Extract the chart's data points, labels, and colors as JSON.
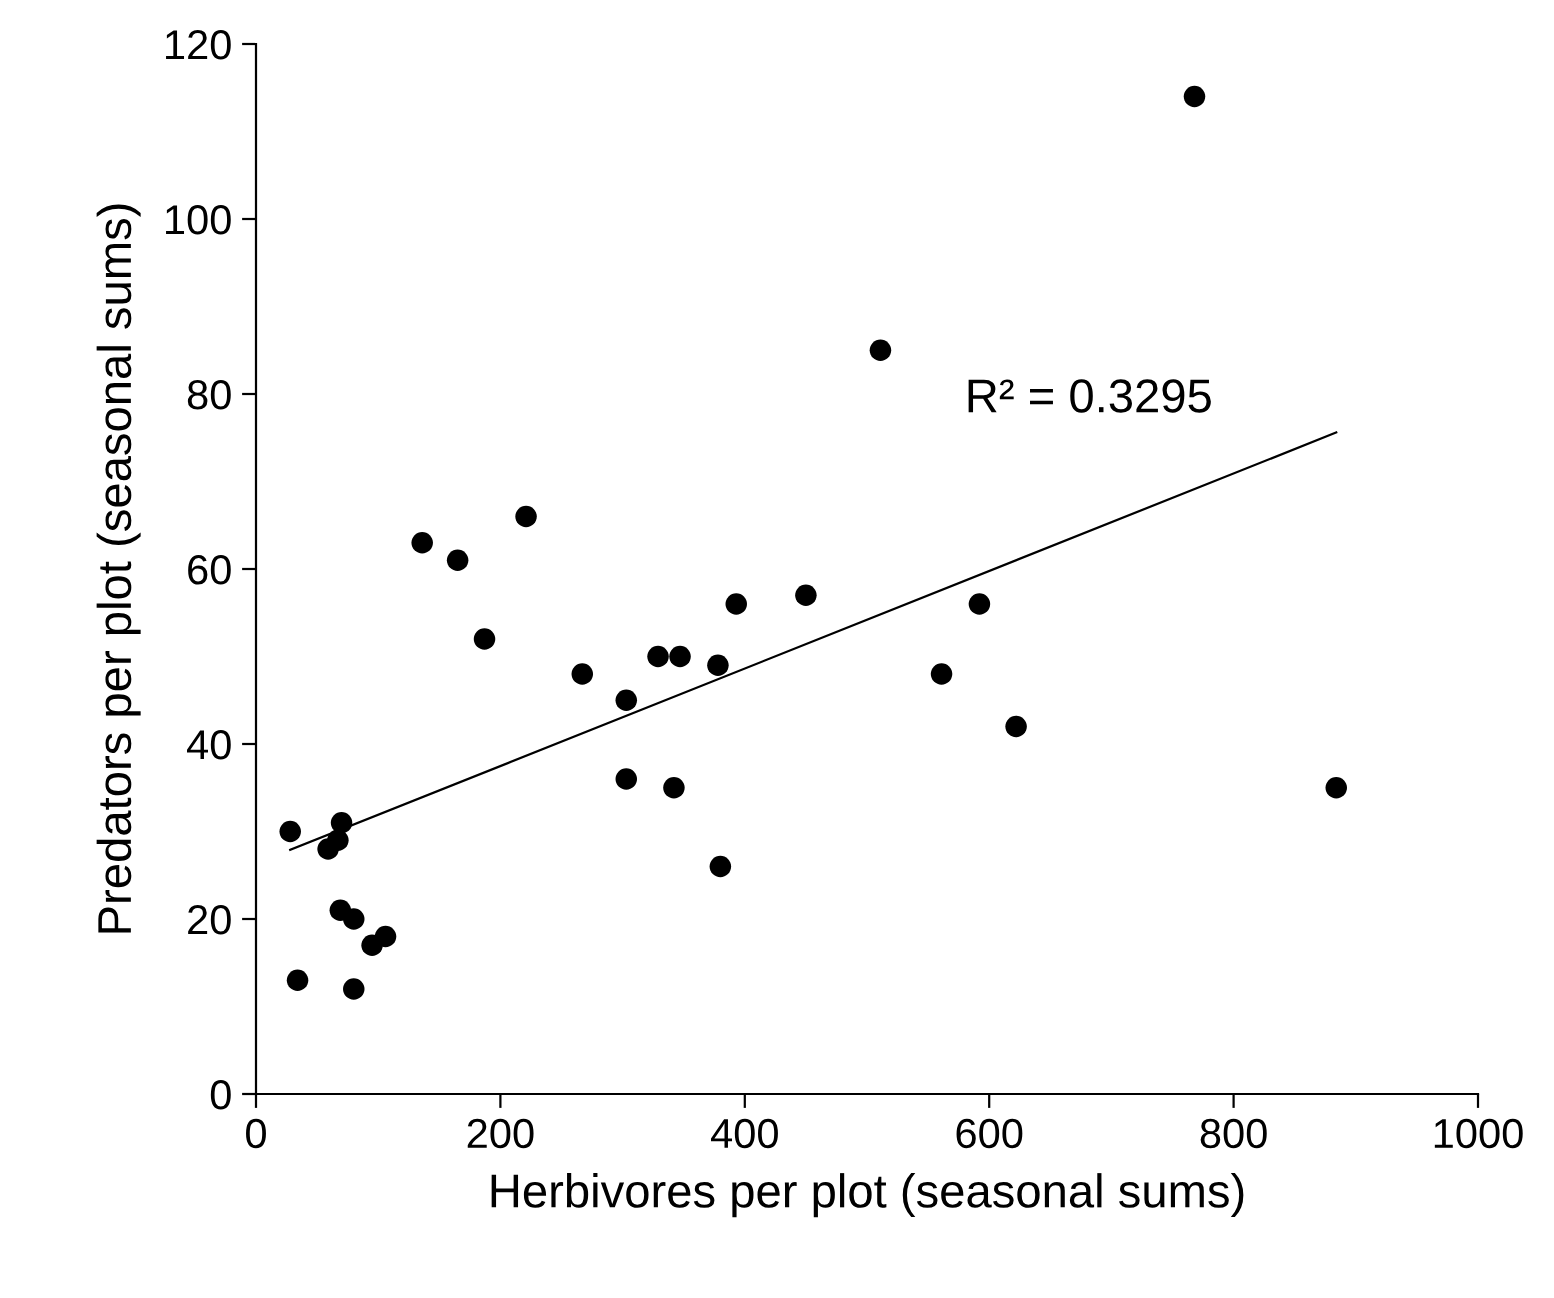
{
  "chart_data": {
    "type": "scatter",
    "xlabel": "Herbivores per plot (seasonal sums)",
    "ylabel": "Predators per plot (seasonal sums)",
    "xlim": [
      0,
      1000
    ],
    "xticks": [
      0,
      200,
      400,
      600,
      800,
      1000
    ],
    "ylim": [
      0,
      120
    ],
    "yticks": [
      0,
      20,
      40,
      60,
      80,
      100,
      120
    ],
    "grid": false,
    "marker": "circle",
    "annotations": [
      "R² = 0.3295"
    ],
    "series": [
      {
        "color": "#000000",
        "x": [
          28,
          34,
          59,
          67,
          70,
          69,
          80,
          80,
          95,
          106,
          136,
          165,
          187,
          221,
          267,
          303,
          303,
          329,
          347,
          342,
          380,
          378,
          393,
          450,
          511,
          561,
          592,
          622,
          768,
          884
        ],
        "values": [
          30,
          13,
          28,
          29,
          31,
          21,
          20,
          12,
          17,
          18,
          63,
          61,
          52,
          66,
          48,
          45,
          36,
          50,
          50,
          35,
          26,
          49,
          56,
          57,
          85,
          48,
          56,
          42,
          114,
          35
        ]
      },
      {
        "type": "line",
        "color": "#000000",
        "marker": "none",
        "x": [
          28,
          884
        ],
        "values": [
          27.9,
          75.6
        ]
      }
    ]
  }
}
